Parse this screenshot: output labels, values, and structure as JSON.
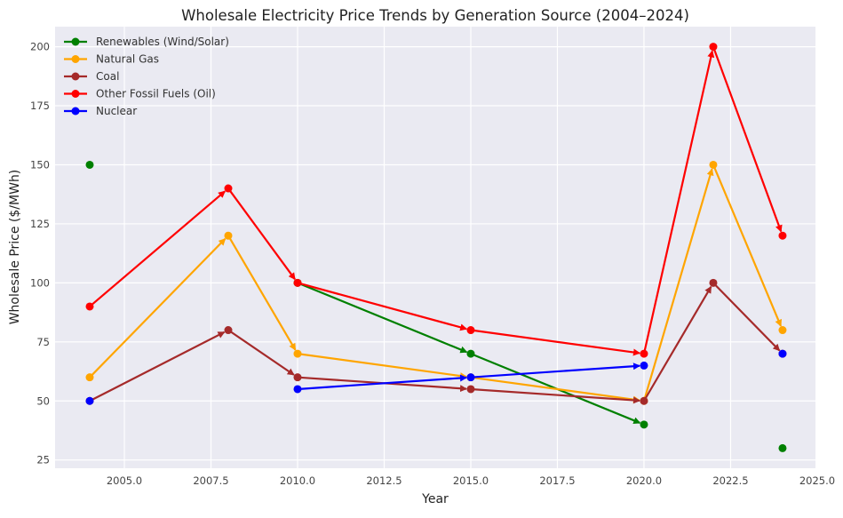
{
  "chart_data": {
    "type": "line",
    "title": "Wholesale Electricity Price Trends by Generation Source (2004–2024)",
    "xlabel": "Year",
    "ylabel": "Wholesale Price ($/MWh)",
    "xlim": [
      2003.0,
      2024.95
    ],
    "ylim": [
      21.5,
      208.5
    ],
    "xticks": [
      2005,
      2007.5,
      2010,
      2012.5,
      2015,
      2017.5,
      2020,
      2022.5,
      2025
    ],
    "xtick_labels": [
      "2005.0",
      "2007.5",
      "2010.0",
      "2012.5",
      "2015.0",
      "2017.5",
      "2020.0",
      "2022.5",
      "2025.0"
    ],
    "yticks": [
      25,
      50,
      75,
      100,
      125,
      150,
      175,
      200
    ],
    "ytick_labels": [
      "25",
      "50",
      "75",
      "100",
      "125",
      "150",
      "175",
      "200"
    ],
    "grid": true,
    "legend_position": "top-left",
    "x": [
      2004,
      2008,
      2010,
      2015,
      2020,
      2022,
      2024
    ],
    "series": [
      {
        "name": "Renewables (Wind/Solar)",
        "color": "#008000",
        "values": [
          150,
          null,
          100,
          70,
          40,
          null,
          30
        ]
      },
      {
        "name": "Natural Gas",
        "color": "#FFA500",
        "values": [
          60,
          120,
          70,
          60,
          50,
          150,
          80
        ]
      },
      {
        "name": "Coal",
        "color": "#A52A2A",
        "values": [
          50,
          80,
          60,
          55,
          50,
          100,
          70
        ]
      },
      {
        "name": "Other Fossil Fuels (Oil)",
        "color": "#FF0000",
        "values": [
          90,
          140,
          100,
          80,
          70,
          200,
          120
        ]
      },
      {
        "name": "Nuclear",
        "color": "#0000FF",
        "values": [
          50,
          null,
          55,
          60,
          65,
          null,
          70
        ]
      }
    ]
  }
}
